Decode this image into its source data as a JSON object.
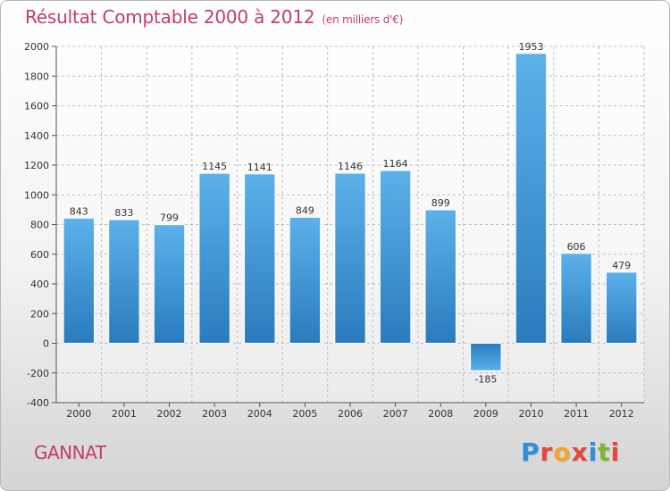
{
  "header": {
    "title": "Résultat Comptable 2000 à 2012",
    "subtitle": "(en milliers d'€)"
  },
  "footer": {
    "city": "GANNAT",
    "logo_letters": [
      "P",
      "r",
      "o",
      "x",
      "i",
      "t",
      "i"
    ],
    "logo_colors": [
      "#2e8ed6",
      "#e8453c",
      "#f5a623",
      "#e8453c",
      "#2e8ed6",
      "#7cb82f",
      "#e8453c"
    ]
  },
  "colors": {
    "bar": "#3d9be0",
    "bar_dark": "#2b7cc0",
    "accent": "#c43c68",
    "grid": "#bdbdbd"
  },
  "chart_data": {
    "type": "bar",
    "title": "Résultat Comptable 2000 à 2012",
    "subtitle": "(en milliers d'€)",
    "categories": [
      "2000",
      "2001",
      "2002",
      "2003",
      "2004",
      "2005",
      "2006",
      "2007",
      "2008",
      "2009",
      "2010",
      "2011",
      "2012"
    ],
    "values": [
      843,
      833,
      799,
      1145,
      1141,
      849,
      1146,
      1164,
      899,
      -185,
      1953,
      606,
      479
    ],
    "data_labels": [
      "843",
      "833",
      "799",
      "1145",
      "1141",
      "849",
      "1146",
      "1164",
      "899",
      "-185",
      "1953",
      "606",
      "479"
    ],
    "ylim": [
      -400,
      2000
    ],
    "yticks": [
      -400,
      -200,
      0,
      200,
      400,
      600,
      800,
      1000,
      1200,
      1400,
      1600,
      1800,
      2000
    ],
    "grid": true,
    "xlabel": "",
    "ylabel": ""
  }
}
